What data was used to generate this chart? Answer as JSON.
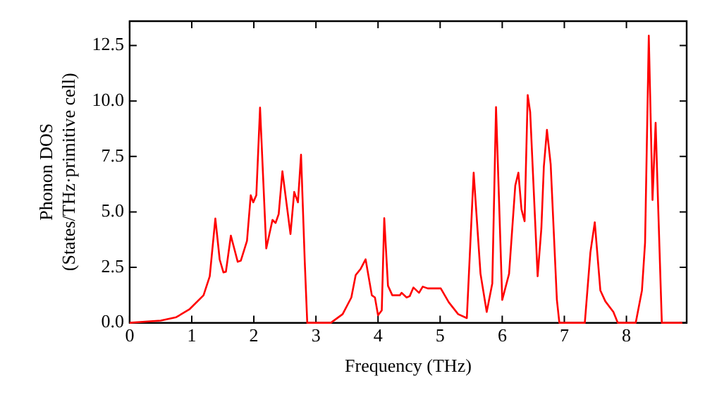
{
  "chart_data": {
    "type": "line",
    "xlabel": "Frequency (THz)",
    "ylabel": "Phonon DOS\n(States/THz·primitive cell)",
    "x": [
      0,
      0.5,
      0.75,
      0.96,
      1.19,
      1.29,
      1.38,
      1.45,
      1.51,
      1.55,
      1.63,
      1.74,
      1.79,
      1.89,
      1.95,
      1.99,
      2.04,
      2.1,
      2.2,
      2.3,
      2.35,
      2.4,
      2.46,
      2.59,
      2.65,
      2.71,
      2.76,
      2.82,
      2.86,
      3.24,
      3.43,
      3.57,
      3.64,
      3.72,
      3.8,
      3.9,
      3.95,
      4.0,
      4.06,
      4.1,
      4.16,
      4.23,
      4.35,
      4.38,
      4.46,
      4.51,
      4.57,
      4.66,
      4.72,
      4.8,
      5.01,
      5.14,
      5.29,
      5.43,
      5.54,
      5.65,
      5.75,
      5.84,
      5.9,
      6.0,
      6.11,
      6.21,
      6.26,
      6.31,
      6.36,
      6.41,
      6.45,
      6.57,
      6.63,
      6.67,
      6.72,
      6.78,
      6.88,
      6.92,
      7.33,
      7.42,
      7.49,
      7.58,
      7.66,
      7.79,
      7.86,
      8.15,
      8.25,
      8.3,
      8.36,
      8.42,
      8.47,
      8.51,
      8.57,
      8.9
    ],
    "series": [
      {
        "color": "#ff0000",
        "values": [
          0,
          0.1,
          0.25,
          0.6,
          1.24,
          2.1,
          4.7,
          2.85,
          2.27,
          2.3,
          3.93,
          2.75,
          2.8,
          3.7,
          5.75,
          5.43,
          5.75,
          9.7,
          3.35,
          4.64,
          4.5,
          4.9,
          6.83,
          4.0,
          5.9,
          5.43,
          7.58,
          2.75,
          0,
          0,
          0.39,
          1.14,
          2.15,
          2.43,
          2.86,
          1.24,
          1.14,
          0.34,
          0.56,
          4.72,
          1.67,
          1.24,
          1.24,
          1.35,
          1.14,
          1.2,
          1.59,
          1.35,
          1.63,
          1.55,
          1.55,
          0.92,
          0.39,
          0.21,
          6.77,
          2.21,
          0.49,
          1.78,
          9.73,
          1.03,
          2.21,
          6.19,
          6.77,
          5.11,
          4.58,
          10.27,
          9.5,
          2.1,
          4.25,
          7.04,
          8.7,
          7.15,
          1.03,
          0,
          0,
          3.18,
          4.53,
          1.46,
          0.97,
          0.49,
          0,
          0,
          1.46,
          3.61,
          12.95,
          5.54,
          9.02,
          5.33,
          0,
          0
        ]
      }
    ],
    "xlim": [
      0,
      8.97
    ],
    "xticks": [
      0,
      1,
      2,
      3,
      4,
      5,
      6,
      7,
      8
    ],
    "ylim": [
      0,
      13.6
    ],
    "yticks": [
      {
        "value": 0,
        "label": "0.0"
      },
      {
        "value": 2.5,
        "label": "2.5"
      },
      {
        "value": 5,
        "label": "5.0"
      },
      {
        "value": 7.5,
        "label": "7.5"
      },
      {
        "value": 10,
        "label": "10.0"
      },
      {
        "value": 12.5,
        "label": "12.5"
      }
    ],
    "grid": false,
    "legend": false,
    "marker": "none",
    "line_style": "solid"
  }
}
